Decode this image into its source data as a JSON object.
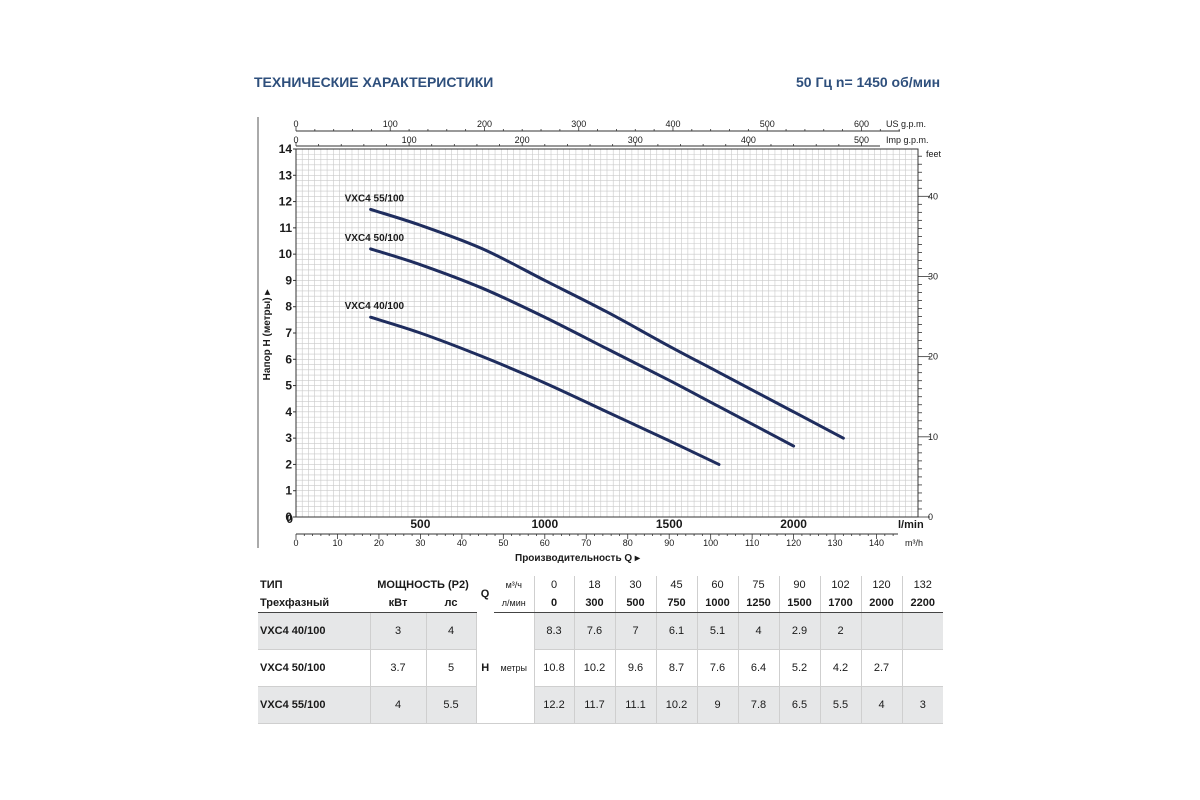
{
  "header": {
    "title": "ТЕХНИЧЕСКИЕ ХАРАКТЕРИСТИКИ",
    "frequency": "50 Гц  n= 1450 об/мин"
  },
  "chart_data": {
    "type": "line",
    "x_axis": {
      "label": "Производительность  Q",
      "unit": "l/min",
      "range": [
        0,
        2500
      ],
      "ticks": [
        0,
        500,
        1000,
        1500,
        2000
      ]
    },
    "x_axis_m3h": {
      "unit": "m³/h",
      "range": [
        0,
        150
      ],
      "ticks": [
        0,
        10,
        20,
        30,
        40,
        50,
        60,
        70,
        80,
        90,
        100,
        110,
        120,
        130,
        140
      ]
    },
    "x_axis_usgpm": {
      "unit": "US g.p.m.",
      "range": [
        0,
        660
      ],
      "ticks": [
        0,
        100,
        200,
        300,
        400,
        500,
        600
      ]
    },
    "x_axis_impgpm": {
      "unit": "Imp g.p.m.",
      "range": [
        0,
        550
      ],
      "ticks": [
        0,
        100,
        200,
        300,
        400,
        500
      ]
    },
    "y_axis": {
      "label": "Напор H (метры)",
      "range": [
        0,
        14
      ],
      "ticks": [
        0,
        1,
        2,
        3,
        4,
        5,
        6,
        7,
        8,
        9,
        10,
        11,
        12,
        13,
        14
      ]
    },
    "y_axis_feet": {
      "unit": "feet",
      "range": [
        0,
        45.9
      ],
      "ticks": [
        0,
        10,
        20,
        30,
        40
      ]
    },
    "grid": true,
    "series": [
      {
        "name": "VXC4 40/100",
        "x": [
          300,
          500,
          750,
          1000,
          1250,
          1500,
          1700
        ],
        "y": [
          7.6,
          7.0,
          6.1,
          5.1,
          4.0,
          2.9,
          2.0
        ]
      },
      {
        "name": "VXC4 50/100",
        "x": [
          300,
          500,
          750,
          1000,
          1250,
          1500,
          1700,
          2000
        ],
        "y": [
          10.2,
          9.6,
          8.7,
          7.6,
          6.4,
          5.2,
          4.2,
          2.7
        ]
      },
      {
        "name": "VXC4 55/100",
        "x": [
          300,
          500,
          750,
          1000,
          1250,
          1500,
          1700,
          2000,
          2200
        ],
        "y": [
          11.7,
          11.1,
          10.2,
          9.0,
          7.8,
          6.5,
          5.5,
          4.0,
          3.0
        ]
      }
    ],
    "color": "#1f2d5e"
  },
  "table": {
    "type_label": "ТИП",
    "phase_label": "Трехфазный",
    "power_label": "МОЩНОСТЬ (P2)",
    "kw_label": "кВт",
    "hp_label": "лс",
    "q_label": "Q",
    "m3h_label": "м³/ч",
    "lmin_label": "л/мин",
    "h_label": "H",
    "h_unit": "метры",
    "q_m3h": [
      "0",
      "18",
      "30",
      "45",
      "60",
      "75",
      "90",
      "102",
      "120",
      "132"
    ],
    "q_lmin": [
      "0",
      "300",
      "500",
      "750",
      "1000",
      "1250",
      "1500",
      "1700",
      "2000",
      "2200"
    ],
    "rows": [
      {
        "model": "VXC4 40/100",
        "kw": "3",
        "hp": "4",
        "h": [
          "8.3",
          "7.6",
          "7",
          "6.1",
          "5.1",
          "4",
          "2.9",
          "2",
          "",
          ""
        ]
      },
      {
        "model": "VXC4 50/100",
        "kw": "3.7",
        "hp": "5",
        "h": [
          "10.8",
          "10.2",
          "9.6",
          "8.7",
          "7.6",
          "6.4",
          "5.2",
          "4.2",
          "2.7",
          ""
        ]
      },
      {
        "model": "VXC4 55/100",
        "kw": "4",
        "hp": "5.5",
        "h": [
          "12.2",
          "11.7",
          "11.1",
          "10.2",
          "9",
          "7.8",
          "6.5",
          "5.5",
          "4",
          "3"
        ]
      }
    ]
  }
}
